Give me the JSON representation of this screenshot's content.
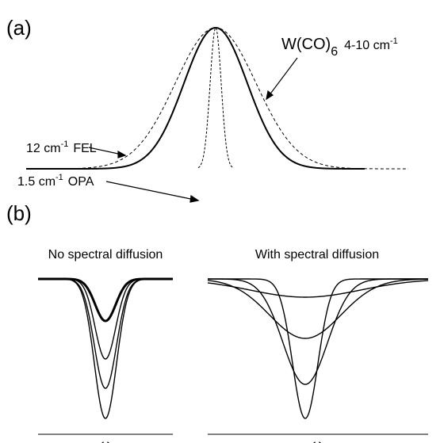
{
  "panel_a": {
    "label": "(a)",
    "fel": {
      "value": "12 cm",
      "sup": "-1",
      "name": "FEL"
    },
    "opa": {
      "value": "1.5 cm",
      "sup": "-1",
      "name": "OPA"
    },
    "sample": {
      "name": "W(CO)",
      "sub": "6",
      "value": "4-10 cm",
      "sup": "-1"
    }
  },
  "panel_b": {
    "label": "(b)",
    "left_title": "No spectral diffusion",
    "right_title": "With spectral diffusion",
    "left_axis": "ω",
    "right_axis": "ω"
  }
}
